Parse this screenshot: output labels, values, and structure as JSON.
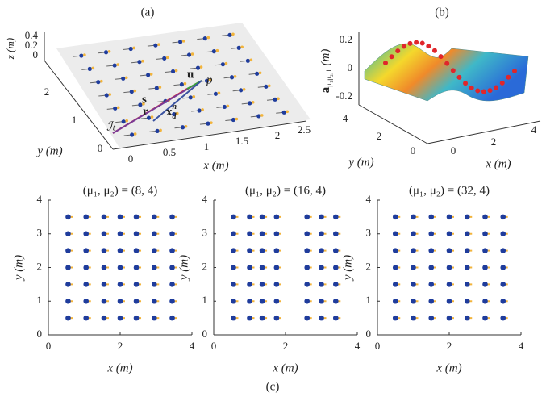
{
  "panel_a": {
    "label": "(a)",
    "zlabel": "z (m)",
    "zticks": [
      "0.4",
      "0.2",
      "0"
    ],
    "yticks": [
      "2",
      "1",
      "0"
    ],
    "ylabel": "y (m)",
    "xticks": [
      "0",
      "0.5",
      "1",
      "1.5",
      "2",
      "2.5"
    ],
    "xlabel": "x (m)",
    "annotations": {
      "u": "u",
      "p": "p",
      "s": "s",
      "r": "r",
      "xd_main": "x",
      "xd_sub": "d",
      "xd_sup": "n",
      "it": "ℐₜ"
    }
  },
  "panel_b": {
    "label": "(b)",
    "zlabel_main": "a",
    "zlabel_sub": "μ₁μ₂,1",
    "zlabel_unit": " (m)",
    "zticks": [
      "0.2",
      "0",
      "-0.2"
    ],
    "yticks": [
      "4",
      "2",
      "0"
    ],
    "ylabel": "y (m)",
    "xticks": [
      "0",
      "2",
      "4"
    ],
    "xlabel": "x (m)"
  },
  "caption_c": "(c)",
  "chart_data": [
    {
      "type": "scatter",
      "title": "(μ₁, μ₂) = (8, 4)",
      "xlabel": "x (m)",
      "ylabel": "y (m)",
      "xlim": [
        0,
        4
      ],
      "ylim": [
        0,
        4
      ],
      "xticks": [
        0,
        2,
        4
      ],
      "yticks": [
        0,
        1,
        2,
        3,
        4
      ],
      "color": "#1f3c9c",
      "accent_color": "#f2b43c",
      "x": [
        0.55,
        1.05,
        1.55,
        2,
        2.45,
        2.95,
        3.45,
        0.55,
        1.05,
        1.55,
        2,
        2.45,
        2.95,
        3.45,
        0.55,
        1.05,
        1.55,
        2,
        2.45,
        2.95,
        3.45,
        0.55,
        1.05,
        1.55,
        2,
        2.45,
        2.95,
        3.45,
        0.55,
        1.05,
        1.55,
        2,
        2.45,
        2.95,
        3.45,
        0.55,
        1.05,
        1.55,
        2,
        2.45,
        2.95,
        3.45,
        0.55,
        1.05,
        1.55,
        2,
        2.45,
        2.95,
        3.45
      ],
      "values": [
        3.5,
        3.5,
        3.5,
        3.5,
        3.5,
        3.5,
        3.5,
        3,
        3,
        3,
        3,
        3,
        3,
        3,
        2.5,
        2.5,
        2.5,
        2.5,
        2.5,
        2.5,
        2.5,
        2,
        2,
        2,
        2,
        2,
        2,
        2,
        1.5,
        1.5,
        1.5,
        1.5,
        1.5,
        1.5,
        1.5,
        1,
        1,
        1,
        1,
        1,
        1,
        1,
        0.5,
        0.5,
        0.5,
        0.5,
        0.5,
        0.5,
        0.5
      ]
    },
    {
      "type": "scatter",
      "title": "(μ₁, μ₂) = (16, 4)",
      "xlabel": "x (m)",
      "ylabel": "y (m)",
      "xlim": [
        0,
        4
      ],
      "ylim": [
        0,
        4
      ],
      "xticks": [
        0,
        2,
        4
      ],
      "yticks": [
        0,
        1,
        2,
        3,
        4
      ],
      "color": "#1f3c9c",
      "accent_color": "#f2b43c",
      "x": [
        0.55,
        1,
        1.35,
        1.75,
        2.6,
        3,
        3.4,
        0.55,
        1,
        1.35,
        1.75,
        2.6,
        3,
        3.4,
        0.55,
        1,
        1.35,
        1.75,
        2.6,
        3,
        3.4,
        0.55,
        1,
        1.35,
        1.75,
        2.6,
        3,
        3.4,
        0.55,
        1,
        1.35,
        1.75,
        2.6,
        3,
        3.4,
        0.55,
        1,
        1.35,
        1.75,
        2.6,
        3,
        3.4,
        0.55,
        1,
        1.35,
        1.75,
        2.6,
        3,
        3.4
      ],
      "values": [
        3.5,
        3.5,
        3.5,
        3.5,
        3.5,
        3.5,
        3.5,
        3,
        3,
        3,
        3,
        3,
        3,
        3,
        2.5,
        2.5,
        2.5,
        2.5,
        2.5,
        2.5,
        2.5,
        2,
        2,
        2,
        2,
        2,
        2,
        2,
        1.5,
        1.5,
        1.5,
        1.5,
        1.5,
        1.5,
        1.5,
        1,
        1,
        1,
        1,
        1,
        1,
        1,
        0.5,
        0.5,
        0.5,
        0.5,
        0.5,
        0.5,
        0.5
      ]
    },
    {
      "type": "scatter",
      "title": "(μ₁, μ₂) = (32, 4)",
      "xlabel": "x (m)",
      "ylabel": "y (m)",
      "xlim": [
        0,
        4
      ],
      "ylim": [
        0,
        4
      ],
      "xticks": [
        0,
        2,
        4
      ],
      "yticks": [
        0,
        1,
        2,
        3,
        4
      ],
      "color": "#1f3c9c",
      "accent_color": "#f2b43c",
      "x": [
        0.5,
        1,
        1.5,
        2,
        2.5,
        3,
        3.5,
        0.5,
        1,
        1.5,
        2,
        2.5,
        3,
        3.5,
        0.5,
        1,
        1.5,
        2,
        2.5,
        3,
        3.5,
        0.5,
        1,
        1.5,
        2,
        2.5,
        3,
        3.5,
        0.5,
        1,
        1.5,
        2,
        2.5,
        3,
        3.5,
        0.5,
        1,
        1.5,
        2,
        2.5,
        3,
        3.5,
        0.5,
        1,
        1.5,
        2,
        2.5,
        3,
        3.5
      ],
      "values": [
        3.5,
        3.5,
        3.5,
        3.5,
        3.5,
        3.5,
        3.5,
        3,
        3,
        3,
        3,
        3,
        3,
        3,
        2.5,
        2.5,
        2.5,
        2.5,
        2.5,
        2.5,
        2.5,
        2,
        2,
        2,
        2,
        2,
        2,
        2,
        1.5,
        1.5,
        1.5,
        1.5,
        1.5,
        1.5,
        1.5,
        1,
        1,
        1,
        1,
        1,
        1,
        1,
        0.5,
        0.5,
        0.5,
        0.5,
        0.5,
        0.5,
        0.5
      ]
    }
  ]
}
